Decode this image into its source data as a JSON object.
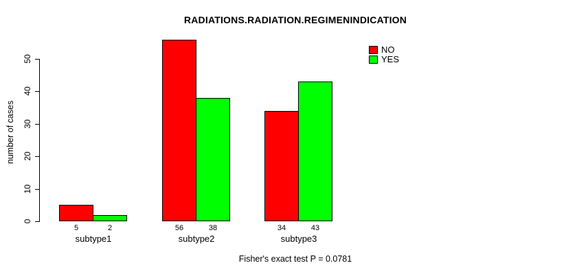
{
  "chart_data": {
    "type": "bar",
    "grouped": true,
    "title": "RADIATIONS.RADIATION.REGIMENINDICATION",
    "xlabel": "",
    "ylabel": "number of cases",
    "categories": [
      "subtype1",
      "subtype2",
      "subtype3"
    ],
    "series": [
      {
        "name": "NO",
        "color": "#ff0000",
        "values": [
          5,
          56,
          34
        ]
      },
      {
        "name": "YES",
        "color": "#00ff00",
        "values": [
          2,
          38,
          43
        ]
      }
    ],
    "value_labels_shown": true,
    "yticks": [
      0,
      10,
      20,
      30,
      40,
      50
    ],
    "ylim": [
      0,
      50
    ],
    "grid": false,
    "legend_position": "top-right",
    "axis_color": "#000000",
    "bar_border_color": "#000000",
    "annotation": "Fisher's exact test P = 0.0781"
  }
}
